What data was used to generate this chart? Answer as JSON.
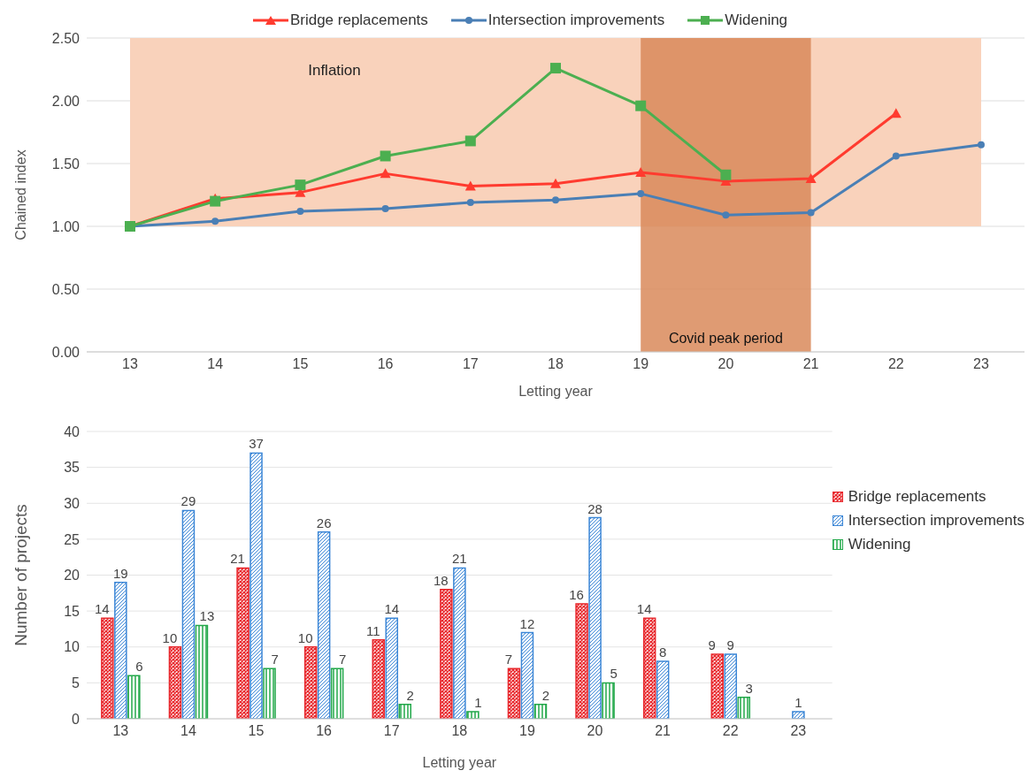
{
  "chart_data": [
    {
      "type": "line",
      "categories": [
        "13",
        "14",
        "15",
        "16",
        "17",
        "18",
        "19",
        "20",
        "21",
        "22",
        "23"
      ],
      "series": [
        {
          "name": "Bridge replacements",
          "color": "#ff3b2f",
          "marker": "triangle",
          "values": [
            1.0,
            1.22,
            1.27,
            1.42,
            1.32,
            1.34,
            1.43,
            1.36,
            1.38,
            1.9,
            null
          ]
        },
        {
          "name": "Intersection improvements",
          "color": "#4a7fb5",
          "marker": "circle",
          "values": [
            1.0,
            1.04,
            1.12,
            1.14,
            1.19,
            1.21,
            1.26,
            1.09,
            1.11,
            1.56,
            1.65
          ]
        },
        {
          "name": "Widening",
          "color": "#4caf50",
          "marker": "square",
          "values": [
            1.0,
            1.2,
            1.33,
            1.56,
            1.68,
            2.26,
            1.96,
            1.41,
            null,
            null,
            null
          ]
        }
      ],
      "ylim": [
        0,
        2.5
      ],
      "yticks": [
        {
          "value": 0,
          "label": "0.00"
        },
        {
          "value": 0.5,
          "label": "0.50"
        },
        {
          "value": 1,
          "label": "1.00"
        },
        {
          "value": 1.5,
          "label": "1.50"
        },
        {
          "value": 2,
          "label": "2.00"
        },
        {
          "value": 2.5,
          "label": "2.50"
        }
      ],
      "ylabel": "Chained index",
      "xlabel": "Letting year",
      "grid": "y",
      "legend": "top",
      "bands": [
        {
          "axis": "y",
          "from": 1,
          "to": 2.5,
          "label": "Inflation",
          "color": "#f9d2bb"
        },
        {
          "axis": "x",
          "from": "19",
          "to": "21",
          "label": "Covid peak period",
          "color": "#d98a5a"
        }
      ]
    },
    {
      "type": "bar",
      "categories": [
        "13",
        "14",
        "15",
        "16",
        "17",
        "18",
        "19",
        "20",
        "21",
        "22",
        "23"
      ],
      "series": [
        {
          "name": "Bridge replacements",
          "color": "#e8282d",
          "values": [
            14,
            10,
            21,
            10,
            11,
            18,
            7,
            16,
            14,
            9,
            null
          ]
        },
        {
          "name": "Intersection improvements",
          "color": "#3b86d6",
          "values": [
            19,
            29,
            37,
            26,
            14,
            21,
            12,
            28,
            8,
            9,
            1
          ]
        },
        {
          "name": "Widening",
          "color": "#22a84a",
          "values": [
            6,
            13,
            7,
            7,
            2,
            1,
            2,
            5,
            null,
            3,
            null
          ]
        }
      ],
      "ylim": [
        0,
        40
      ],
      "yticks": [
        0,
        5,
        10,
        15,
        20,
        25,
        30,
        35,
        40
      ],
      "ylabel": "Number of projects",
      "xlabel": "Letting year",
      "grid": "y",
      "legend": "right",
      "data_labels": true
    }
  ]
}
